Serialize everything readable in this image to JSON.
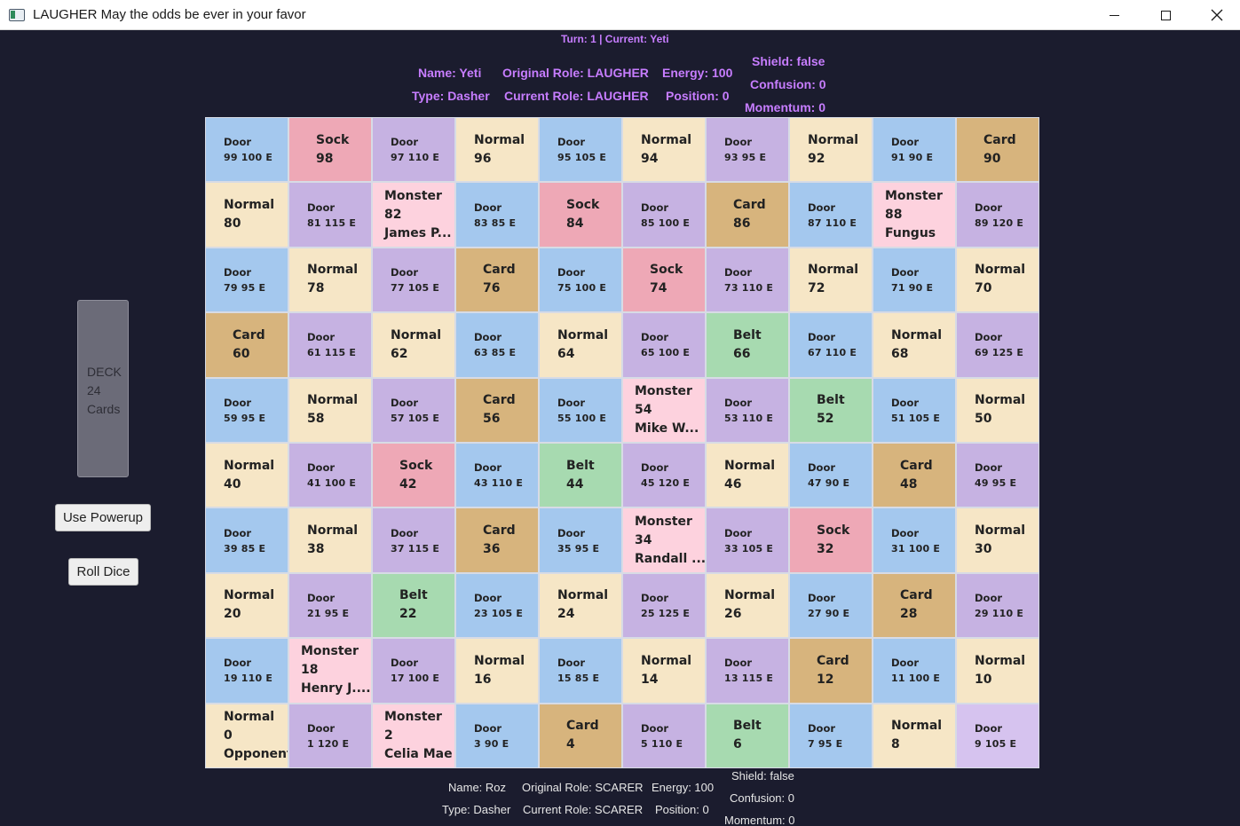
{
  "window": {
    "title": "LAUGHER May the odds be ever in your favor"
  },
  "turn_info": "Turn: 1  |  Current: Yeti",
  "current_player": {
    "name": "Name: Yeti",
    "original_role": "Original Role: LAUGHER",
    "energy": "Energy: 100",
    "type": "Type: Dasher",
    "current_role": "Current Role: LAUGHER",
    "position": "Position: 0",
    "shield": "Shield: false",
    "confusion": "Confusion: 0",
    "momentum": "Momentum: 0"
  },
  "opponent": {
    "name": "Name: Roz",
    "original_role": "Original Role: SCARER",
    "energy": "Energy: 100",
    "type": "Type: Dasher",
    "current_role": "Current Role: SCARER",
    "position": "Position: 0",
    "shield": "Shield: false",
    "confusion": "Confusion: 0",
    "momentum": "Momentum: 0"
  },
  "deck": {
    "line1": "DECK",
    "line2": "24",
    "line3": "Cards"
  },
  "buttons": {
    "use_powerup": "Use Powerup",
    "roll_dice": "Roll Dice"
  },
  "board": [
    {
      "kind": "door",
      "color": "blue",
      "l1": "Door",
      "l2": "99  100 E"
    },
    {
      "kind": "sock",
      "l1": "Sock",
      "l2": "98"
    },
    {
      "kind": "door",
      "color": "purple",
      "l1": "Door",
      "l2": "97  110 E"
    },
    {
      "kind": "normal",
      "l1": "Normal",
      "l2": "96"
    },
    {
      "kind": "door",
      "color": "blue",
      "l1": "Door",
      "l2": "95  105 E"
    },
    {
      "kind": "normal",
      "l1": "Normal",
      "l2": "94"
    },
    {
      "kind": "door",
      "color": "purple",
      "l1": "Door",
      "l2": "93  95 E"
    },
    {
      "kind": "normal",
      "l1": "Normal",
      "l2": "92"
    },
    {
      "kind": "door",
      "color": "blue",
      "l1": "Door",
      "l2": "91  90 E"
    },
    {
      "kind": "card",
      "l1": "Card",
      "l2": "90"
    },
    {
      "kind": "normal",
      "l1": "Normal",
      "l2": "80"
    },
    {
      "kind": "door",
      "color": "purple",
      "l1": "Door",
      "l2": "81  115 E"
    },
    {
      "kind": "monster",
      "l1": "Monster",
      "l2": "82",
      "l3": "James P..."
    },
    {
      "kind": "door",
      "color": "blue",
      "l1": "Door",
      "l2": "83  85 E"
    },
    {
      "kind": "sock",
      "l1": "Sock",
      "l2": "84"
    },
    {
      "kind": "door",
      "color": "purple",
      "l1": "Door",
      "l2": "85  100 E"
    },
    {
      "kind": "card",
      "l1": "Card",
      "l2": "86"
    },
    {
      "kind": "door",
      "color": "blue",
      "l1": "Door",
      "l2": "87  110 E"
    },
    {
      "kind": "monster",
      "l1": "Monster",
      "l2": "88",
      "l3": "Fungus"
    },
    {
      "kind": "door",
      "color": "purple",
      "l1": "Door",
      "l2": "89  120 E"
    },
    {
      "kind": "door",
      "color": "blue",
      "l1": "Door",
      "l2": "79  95 E"
    },
    {
      "kind": "normal",
      "l1": "Normal",
      "l2": "78"
    },
    {
      "kind": "door",
      "color": "purple",
      "l1": "Door",
      "l2": "77  105 E"
    },
    {
      "kind": "card",
      "l1": "Card",
      "l2": "76"
    },
    {
      "kind": "door",
      "color": "blue",
      "l1": "Door",
      "l2": "75  100 E"
    },
    {
      "kind": "sock",
      "l1": "Sock",
      "l2": "74"
    },
    {
      "kind": "door",
      "color": "purple",
      "l1": "Door",
      "l2": "73  110 E"
    },
    {
      "kind": "normal",
      "l1": "Normal",
      "l2": "72"
    },
    {
      "kind": "door",
      "color": "blue",
      "l1": "Door",
      "l2": "71  90 E"
    },
    {
      "kind": "normal",
      "l1": "Normal",
      "l2": "70"
    },
    {
      "kind": "card",
      "l1": "Card",
      "l2": "60"
    },
    {
      "kind": "door",
      "color": "purple",
      "l1": "Door",
      "l2": "61  115 E"
    },
    {
      "kind": "normal",
      "l1": "Normal",
      "l2": "62"
    },
    {
      "kind": "door",
      "color": "blue",
      "l1": "Door",
      "l2": "63  85 E"
    },
    {
      "kind": "normal",
      "l1": "Normal",
      "l2": "64"
    },
    {
      "kind": "door",
      "color": "purple",
      "l1": "Door",
      "l2": "65  100 E"
    },
    {
      "kind": "belt",
      "l1": "Belt",
      "l2": "66"
    },
    {
      "kind": "door",
      "color": "blue",
      "l1": "Door",
      "l2": "67  110 E"
    },
    {
      "kind": "normal",
      "l1": "Normal",
      "l2": "68"
    },
    {
      "kind": "door",
      "color": "purple",
      "l1": "Door",
      "l2": "69  125 E"
    },
    {
      "kind": "door",
      "color": "blue",
      "l1": "Door",
      "l2": "59  95 E"
    },
    {
      "kind": "normal",
      "l1": "Normal",
      "l2": "58"
    },
    {
      "kind": "door",
      "color": "purple",
      "l1": "Door",
      "l2": "57  105 E"
    },
    {
      "kind": "card",
      "l1": "Card",
      "l2": "56"
    },
    {
      "kind": "door",
      "color": "blue",
      "l1": "Door",
      "l2": "55  100 E"
    },
    {
      "kind": "monster",
      "l1": "Monster",
      "l2": "54",
      "l3": "Mike W..."
    },
    {
      "kind": "door",
      "color": "purple",
      "l1": "Door",
      "l2": "53  110 E"
    },
    {
      "kind": "belt",
      "l1": "Belt",
      "l2": "52"
    },
    {
      "kind": "door",
      "color": "blue",
      "l1": "Door",
      "l2": "51  105 E"
    },
    {
      "kind": "normal",
      "l1": "Normal",
      "l2": "50"
    },
    {
      "kind": "normal",
      "l1": "Normal",
      "l2": "40"
    },
    {
      "kind": "door",
      "color": "purple",
      "l1": "Door",
      "l2": "41  100 E"
    },
    {
      "kind": "sock",
      "l1": "Sock",
      "l2": "42"
    },
    {
      "kind": "door",
      "color": "blue",
      "l1": "Door",
      "l2": "43  110 E"
    },
    {
      "kind": "belt",
      "l1": "Belt",
      "l2": "44"
    },
    {
      "kind": "door",
      "color": "purple",
      "l1": "Door",
      "l2": "45  120 E"
    },
    {
      "kind": "normal",
      "l1": "Normal",
      "l2": "46"
    },
    {
      "kind": "door",
      "color": "blue",
      "l1": "Door",
      "l2": "47  90 E"
    },
    {
      "kind": "card",
      "l1": "Card",
      "l2": "48"
    },
    {
      "kind": "door",
      "color": "purple",
      "l1": "Door",
      "l2": "49  95 E"
    },
    {
      "kind": "door",
      "color": "blue",
      "l1": "Door",
      "l2": "39  85 E"
    },
    {
      "kind": "normal",
      "l1": "Normal",
      "l2": "38"
    },
    {
      "kind": "door",
      "color": "purple",
      "l1": "Door",
      "l2": "37  115 E"
    },
    {
      "kind": "card",
      "l1": "Card",
      "l2": "36"
    },
    {
      "kind": "door",
      "color": "blue",
      "l1": "Door",
      "l2": "35  95 E"
    },
    {
      "kind": "monster",
      "l1": "Monster",
      "l2": "34",
      "l3": "Randall ..."
    },
    {
      "kind": "door",
      "color": "purple",
      "l1": "Door",
      "l2": "33  105 E"
    },
    {
      "kind": "sock",
      "l1": "Sock",
      "l2": "32"
    },
    {
      "kind": "door",
      "color": "blue",
      "l1": "Door",
      "l2": "31  100 E"
    },
    {
      "kind": "normal",
      "l1": "Normal",
      "l2": "30"
    },
    {
      "kind": "normal",
      "l1": "Normal",
      "l2": "20"
    },
    {
      "kind": "door",
      "color": "purple",
      "l1": "Door",
      "l2": "21  95 E"
    },
    {
      "kind": "belt",
      "l1": "Belt",
      "l2": "22"
    },
    {
      "kind": "door",
      "color": "blue",
      "l1": "Door",
      "l2": "23  105 E"
    },
    {
      "kind": "normal",
      "l1": "Normal",
      "l2": "24"
    },
    {
      "kind": "door",
      "color": "purple",
      "l1": "Door",
      "l2": "25  125 E"
    },
    {
      "kind": "normal",
      "l1": "Normal",
      "l2": "26"
    },
    {
      "kind": "door",
      "color": "blue",
      "l1": "Door",
      "l2": "27  90 E"
    },
    {
      "kind": "card",
      "l1": "Card",
      "l2": "28"
    },
    {
      "kind": "door",
      "color": "purple",
      "l1": "Door",
      "l2": "29  110 E"
    },
    {
      "kind": "door",
      "color": "blue",
      "l1": "Door",
      "l2": "19  110 E"
    },
    {
      "kind": "monster",
      "l1": "Monster",
      "l2": "18",
      "l3": "Henry J...."
    },
    {
      "kind": "door",
      "color": "purple",
      "l1": "Door",
      "l2": "17  100 E"
    },
    {
      "kind": "normal",
      "l1": "Normal",
      "l2": "16"
    },
    {
      "kind": "door",
      "color": "blue",
      "l1": "Door",
      "l2": "15  85 E"
    },
    {
      "kind": "normal",
      "l1": "Normal",
      "l2": "14"
    },
    {
      "kind": "door",
      "color": "purple",
      "l1": "Door",
      "l2": "13  115 E"
    },
    {
      "kind": "card",
      "l1": "Card",
      "l2": "12"
    },
    {
      "kind": "door",
      "color": "blue",
      "l1": "Door",
      "l2": "11  100 E"
    },
    {
      "kind": "normal",
      "l1": "Normal",
      "l2": "10"
    },
    {
      "kind": "normal",
      "l1": "Normal",
      "l2": "0",
      "l3": "Opponent"
    },
    {
      "kind": "door",
      "color": "purple",
      "l1": "Door",
      "l2": "1  120 E"
    },
    {
      "kind": "monster",
      "l1": "Monster",
      "l2": "2",
      "l3": "Celia Mae"
    },
    {
      "kind": "door",
      "color": "blue",
      "l1": "Door",
      "l2": "3  90 E"
    },
    {
      "kind": "card",
      "l1": "Card",
      "l2": "4"
    },
    {
      "kind": "door",
      "color": "purple",
      "l1": "Door",
      "l2": "5  110 E"
    },
    {
      "kind": "belt",
      "l1": "Belt",
      "l2": "6"
    },
    {
      "kind": "door",
      "color": "blue",
      "l1": "Door",
      "l2": "7  95 E"
    },
    {
      "kind": "normal",
      "l1": "Normal",
      "l2": "8"
    },
    {
      "kind": "door",
      "color": "light",
      "l1": "Door",
      "l2": "9  105 E"
    }
  ]
}
